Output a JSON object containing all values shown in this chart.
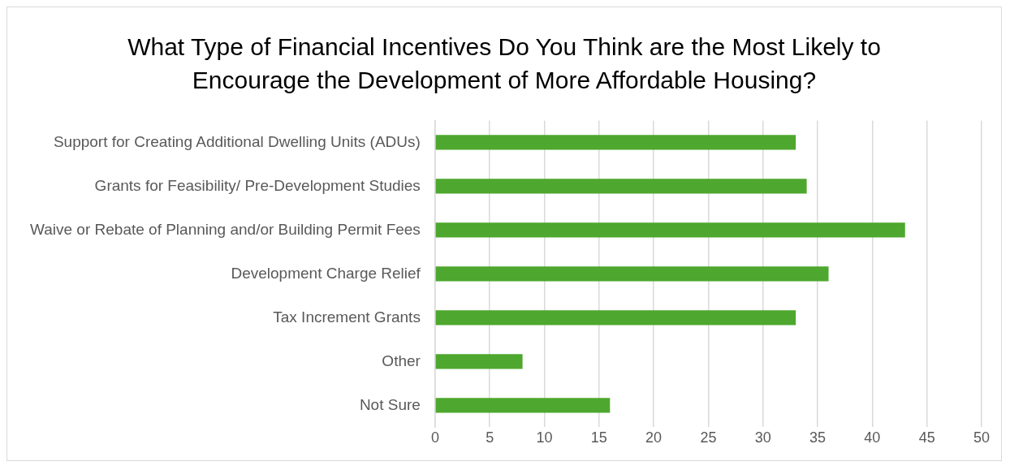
{
  "chart_data": {
    "type": "bar",
    "orientation": "horizontal",
    "title": "What Type of Financial Incentives Do You Think are the Most Likely to Encourage the Development of More Affordable Housing?",
    "categories": [
      "Support for Creating Additional Dwelling Units (ADUs)",
      "Grants for Feasibility/ Pre-Development Studies",
      "Waive or Rebate of Planning and/or Building Permit Fees",
      "Development Charge Relief",
      "Tax Increment Grants",
      "Other",
      "Not Sure"
    ],
    "values": [
      33,
      34,
      43,
      36,
      33,
      8,
      16
    ],
    "color": "#4ea72e",
    "xlim": [
      0,
      50
    ],
    "xticks": [
      0,
      5,
      10,
      15,
      20,
      25,
      30,
      35,
      40,
      45,
      50
    ],
    "grid": "x",
    "legend": false
  }
}
